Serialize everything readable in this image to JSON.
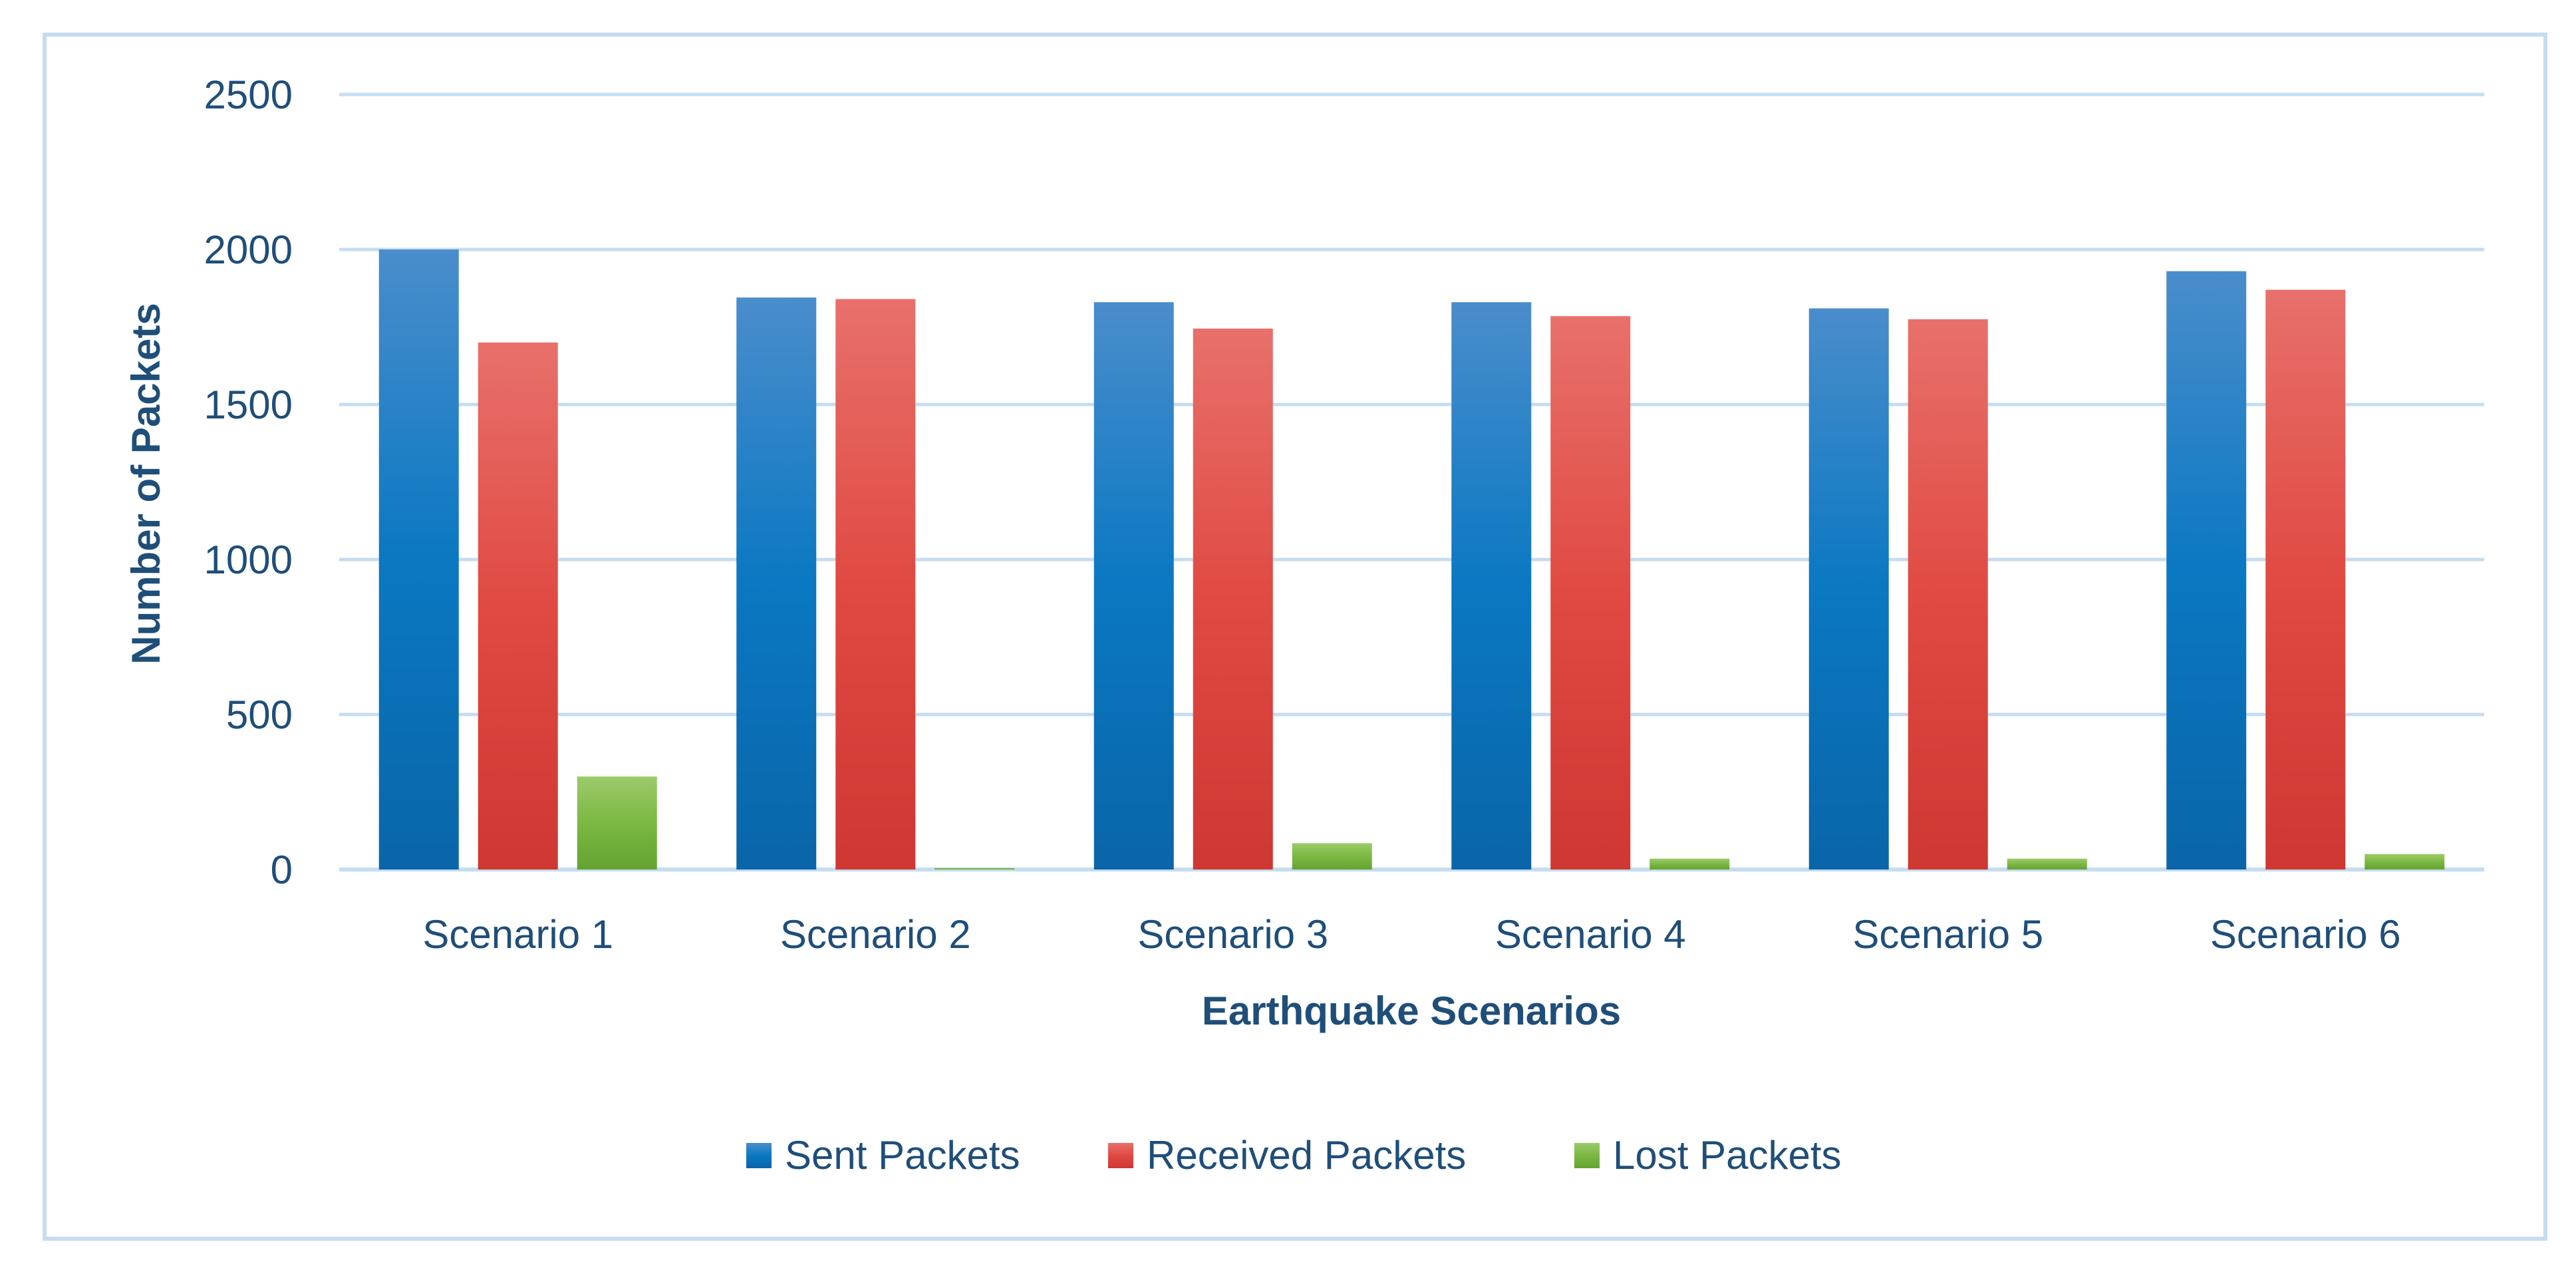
{
  "chart_data": {
    "type": "bar",
    "title": "",
    "xlabel": "Earthquake Scenarios",
    "ylabel": "Number of Packets",
    "categories": [
      "Scenario 1",
      "Scenario 2",
      "Scenario 3",
      "Scenario 4",
      "Scenario 5",
      "Scenario 6"
    ],
    "series": [
      {
        "name": "Sent Packets",
        "color": "#0070c0",
        "values": [
          2000,
          1845,
          1830,
          1830,
          1810,
          1930
        ]
      },
      {
        "name": "Received Packets",
        "color": "#e03c3c",
        "values": [
          1700,
          1840,
          1745,
          1785,
          1775,
          1870
        ]
      },
      {
        "name": "Lost Packets",
        "color": "#70b040",
        "values": [
          300,
          5,
          85,
          35,
          35,
          50
        ]
      }
    ],
    "ylim": [
      0,
      2500
    ],
    "yticks": [
      0,
      500,
      1000,
      1500,
      2000,
      2500
    ],
    "yticks_text": [
      "0",
      "500",
      "1000",
      "1500",
      "2000",
      "2500"
    ],
    "grid": true,
    "legend_position": "bottom"
  }
}
